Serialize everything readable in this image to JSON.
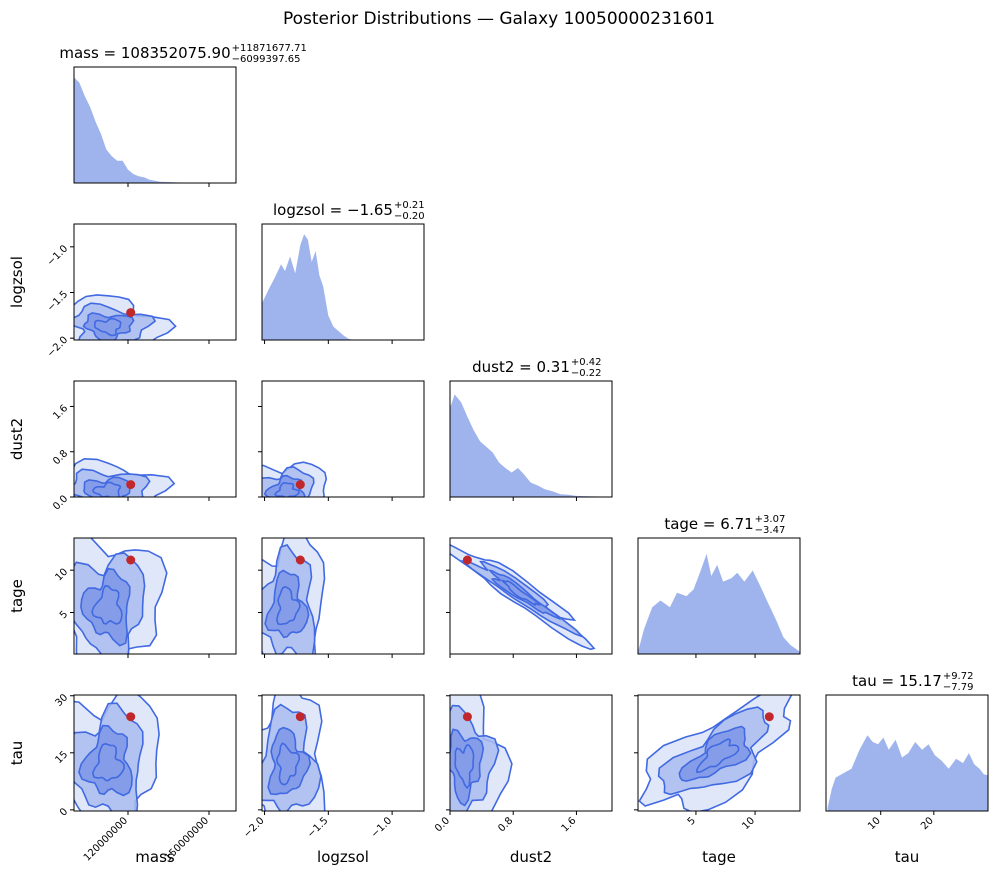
{
  "title": "Posterior Distributions — Galaxy 10050000231601",
  "colors": {
    "contour_line": "#4169e1",
    "fill_light": "#dbe3f8",
    "fill_mid": "#a9bcf0",
    "fill_dark": "#7c97e7",
    "hist_fill": "#9fb4ec",
    "truth_point": "#c0282b"
  },
  "chart_data": {
    "type": "corner",
    "params": [
      "mass",
      "logzsol",
      "dust2",
      "tage",
      "tau"
    ],
    "axis_labels": [
      "mass",
      "logzsol",
      "dust2",
      "tage",
      "tau"
    ],
    "ranges": [
      [
        100000000,
        160000000
      ],
      [
        -2.02,
        -0.75
      ],
      [
        0.0,
        2.05
      ],
      [
        0.1,
        13.8
      ],
      [
        -0.3,
        30.2
      ]
    ],
    "ticks": [
      {
        "values": [
          120000000,
          150000000
        ],
        "labels": [
          "120000000",
          "150000000"
        ]
      },
      {
        "values": [
          -2.0,
          -1.5,
          -1.0
        ],
        "labels": [
          "−2.0",
          "−1.5",
          "−1.0"
        ]
      },
      {
        "values": [
          0.0,
          0.8,
          1.6
        ],
        "labels": [
          "0.0",
          "0.8",
          "1.6"
        ]
      },
      {
        "values": [
          5,
          10
        ],
        "labels": [
          "5",
          "10"
        ]
      },
      {
        "values": [
          10,
          20
        ],
        "labels": [
          "10",
          "20"
        ]
      }
    ],
    "left_ticks": [
      null,
      {
        "values": [
          -2.0,
          -1.5,
          -1.0
        ],
        "labels": [
          "−2.0",
          "−1.5",
          "−1.0"
        ]
      },
      {
        "values": [
          0.0,
          0.8,
          1.6
        ],
        "labels": [
          "0.0",
          "0.8",
          "1.6"
        ]
      },
      {
        "values": [
          5,
          10
        ],
        "labels": [
          "5",
          "10"
        ]
      },
      {
        "values": [
          0,
          15,
          30
        ],
        "labels": [
          "0",
          "15",
          "30"
        ]
      }
    ],
    "marginal_titles": [
      {
        "prefix": "mass = ",
        "value": "108352075.90",
        "plus": "+11871677.71",
        "minus": "−6099397.65"
      },
      {
        "prefix": "logzsol = ",
        "value": "−1.65",
        "plus": "+0.21",
        "minus": "−0.20"
      },
      {
        "prefix": "dust2 = ",
        "value": "0.31",
        "plus": "+0.42",
        "minus": "−0.22"
      },
      {
        "prefix": "tage = ",
        "value": "6.71",
        "plus": "+3.07",
        "minus": "−3.47"
      },
      {
        "prefix": "tau = ",
        "value": "15.17",
        "plus": "+9.72",
        "minus": "−7.79"
      }
    ],
    "best_fit": [
      121000000,
      -1.72,
      0.22,
      11.2,
      24.5
    ],
    "histograms": [
      [
        [
          100000000,
          0.95
        ],
        [
          102000000,
          0.9
        ],
        [
          104000000,
          0.78
        ],
        [
          106000000,
          0.68
        ],
        [
          108000000,
          0.55
        ],
        [
          110000000,
          0.44
        ],
        [
          112000000,
          0.3
        ],
        [
          114000000,
          0.24
        ],
        [
          116000000,
          0.2
        ],
        [
          118000000,
          0.2
        ],
        [
          120000000,
          0.12
        ],
        [
          122000000,
          0.08
        ],
        [
          124000000,
          0.06
        ],
        [
          126000000,
          0.05
        ],
        [
          128000000,
          0.03
        ],
        [
          130000000,
          0.02
        ],
        [
          132000000,
          0.012
        ],
        [
          136000000,
          0.008
        ],
        [
          140000000,
          0.004
        ],
        [
          150000000,
          0.002
        ],
        [
          160000000,
          0.001
        ]
      ],
      [
        [
          -2.02,
          0.33
        ],
        [
          -1.97,
          0.45
        ],
        [
          -1.92,
          0.56
        ],
        [
          -1.87,
          0.68
        ],
        [
          -1.84,
          0.62
        ],
        [
          -1.8,
          0.75
        ],
        [
          -1.76,
          0.6
        ],
        [
          -1.72,
          0.85
        ],
        [
          -1.69,
          0.95
        ],
        [
          -1.66,
          0.9
        ],
        [
          -1.63,
          0.7
        ],
        [
          -1.6,
          0.8
        ],
        [
          -1.57,
          0.58
        ],
        [
          -1.54,
          0.48
        ],
        [
          -1.5,
          0.22
        ],
        [
          -1.46,
          0.12
        ],
        [
          -1.42,
          0.08
        ],
        [
          -1.38,
          0.04
        ],
        [
          -1.34,
          0.01
        ],
        [
          -1.3,
          0.0
        ]
      ],
      [
        [
          0.0,
          0.8
        ],
        [
          0.06,
          0.92
        ],
        [
          0.14,
          0.85
        ],
        [
          0.22,
          0.72
        ],
        [
          0.3,
          0.6
        ],
        [
          0.38,
          0.5
        ],
        [
          0.46,
          0.45
        ],
        [
          0.54,
          0.4
        ],
        [
          0.62,
          0.31
        ],
        [
          0.7,
          0.26
        ],
        [
          0.78,
          0.22
        ],
        [
          0.86,
          0.26
        ],
        [
          0.94,
          0.2
        ],
        [
          1.02,
          0.13
        ],
        [
          1.12,
          0.1
        ],
        [
          1.2,
          0.07
        ],
        [
          1.3,
          0.05
        ],
        [
          1.4,
          0.025
        ],
        [
          1.5,
          0.02
        ],
        [
          1.6,
          0.01
        ],
        [
          1.75,
          0.006
        ],
        [
          2.05,
          0.003
        ]
      ],
      [
        [
          0.1,
          0.02
        ],
        [
          0.6,
          0.22
        ],
        [
          1.3,
          0.42
        ],
        [
          2.0,
          0.48
        ],
        [
          2.8,
          0.42
        ],
        [
          3.4,
          0.55
        ],
        [
          4.2,
          0.52
        ],
        [
          4.8,
          0.58
        ],
        [
          5.4,
          0.75
        ],
        [
          5.9,
          0.9
        ],
        [
          6.3,
          0.7
        ],
        [
          6.8,
          0.8
        ],
        [
          7.3,
          0.65
        ],
        [
          8.0,
          0.68
        ],
        [
          8.5,
          0.73
        ],
        [
          9.1,
          0.65
        ],
        [
          9.8,
          0.75
        ],
        [
          10.4,
          0.62
        ],
        [
          11.0,
          0.48
        ],
        [
          11.8,
          0.3
        ],
        [
          12.4,
          0.15
        ],
        [
          13.0,
          0.08
        ],
        [
          13.8,
          0.02
        ]
      ],
      [
        [
          0.0,
          0.03
        ],
        [
          0.8,
          0.2
        ],
        [
          1.5,
          0.3
        ],
        [
          3.0,
          0.34
        ],
        [
          4.5,
          0.38
        ],
        [
          6.0,
          0.55
        ],
        [
          7.5,
          0.68
        ],
        [
          8.5,
          0.62
        ],
        [
          9.5,
          0.6
        ],
        [
          10.5,
          0.66
        ],
        [
          11.5,
          0.55
        ],
        [
          12.8,
          0.64
        ],
        [
          14.0,
          0.48
        ],
        [
          15.2,
          0.52
        ],
        [
          16.5,
          0.62
        ],
        [
          17.8,
          0.55
        ],
        [
          19.0,
          0.6
        ],
        [
          20.2,
          0.5
        ],
        [
          21.5,
          0.45
        ],
        [
          22.8,
          0.38
        ],
        [
          24.2,
          0.47
        ],
        [
          25.5,
          0.43
        ],
        [
          26.6,
          0.52
        ],
        [
          27.6,
          0.42
        ],
        [
          28.6,
          0.38
        ],
        [
          29.4,
          0.33
        ],
        [
          30.2,
          0.32
        ]
      ]
    ]
  }
}
